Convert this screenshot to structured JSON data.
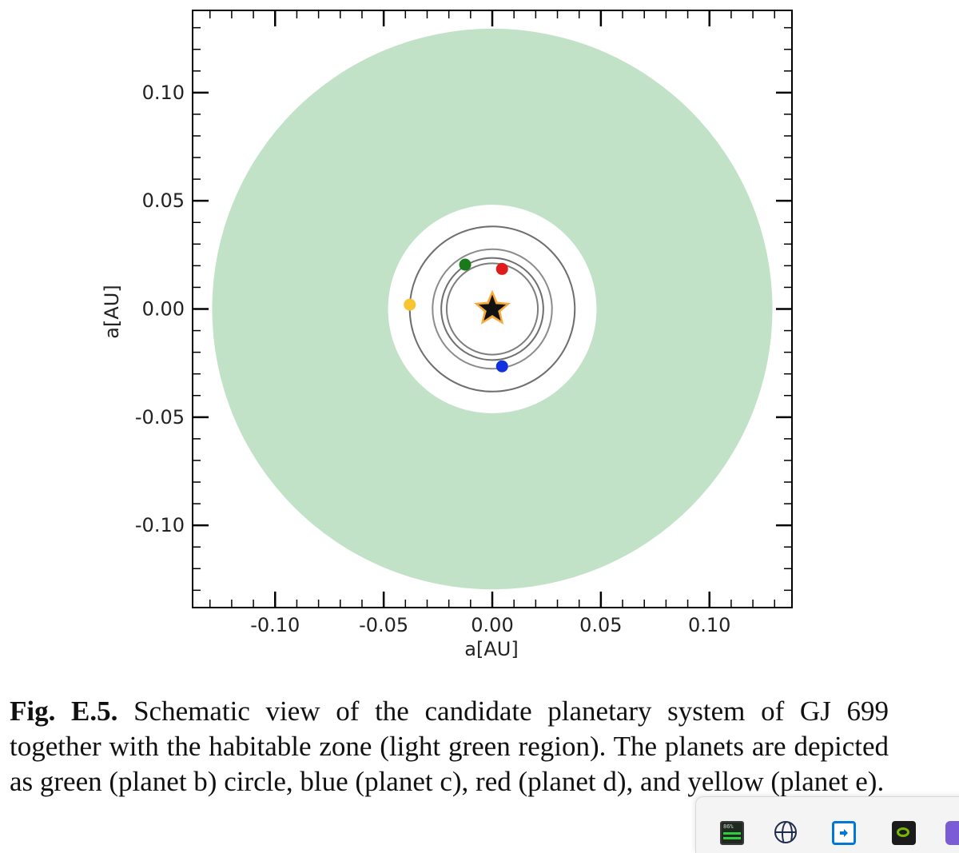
{
  "chart_data": {
    "type": "scatter",
    "title": "",
    "xlabel": "a[AU]",
    "ylabel": "a[AU]",
    "xlim": [
      -0.138,
      0.138
    ],
    "ylim": [
      -0.138,
      0.138
    ],
    "x_ticks": [
      -0.1,
      -0.05,
      0.0,
      0.05,
      0.1
    ],
    "x_tick_labels": [
      "-0.10",
      "-0.05",
      "0.00",
      "0.05",
      "0.10"
    ],
    "y_ticks": [
      0.1,
      0.05,
      0.0,
      -0.05,
      -0.1
    ],
    "y_tick_labels": [
      "0.10",
      "0.05",
      "0.00",
      "-0.05",
      "-0.10"
    ],
    "minor_tick_step": 0.01,
    "grid": false,
    "habitable_zone": {
      "inner_radius": 0.048,
      "outer_radius": 0.129,
      "color": "#c2e2c8"
    },
    "star": {
      "x": 0.0,
      "y": 0.0,
      "fill": "#111111",
      "glow": "#f7a838"
    },
    "orbits": [
      {
        "radius": 0.021,
        "stroke": "#666666"
      },
      {
        "radius": 0.0235,
        "stroke": "#555555"
      },
      {
        "radius": 0.0275,
        "stroke": "#777777"
      },
      {
        "radius": 0.038,
        "stroke": "#555555"
      }
    ],
    "planets": [
      {
        "x": -0.0125,
        "y": 0.0205,
        "color": "#1a7a1a"
      },
      {
        "x": 0.0045,
        "y": 0.0185,
        "color": "#e01b1b"
      },
      {
        "x": 0.0045,
        "y": -0.0265,
        "color": "#1230e0"
      },
      {
        "x": -0.038,
        "y": 0.002,
        "color": "#f7c531"
      }
    ]
  },
  "caption": {
    "label": "Fig. E.5.",
    "text": " Schematic view of the candidate planetary system of GJ 699 together with the habitable zone (light green region). The planets are depicted as green (planet b) circle, blue (planet c), red (planet d), and yellow (planet e)."
  },
  "taskbar": {
    "icons": [
      {
        "name": "gpu-monitor-icon",
        "label": "86%"
      },
      {
        "name": "globe-icon"
      },
      {
        "name": "arrow-box-icon"
      },
      {
        "name": "nvidia-icon"
      },
      {
        "name": "app-icon"
      }
    ]
  }
}
